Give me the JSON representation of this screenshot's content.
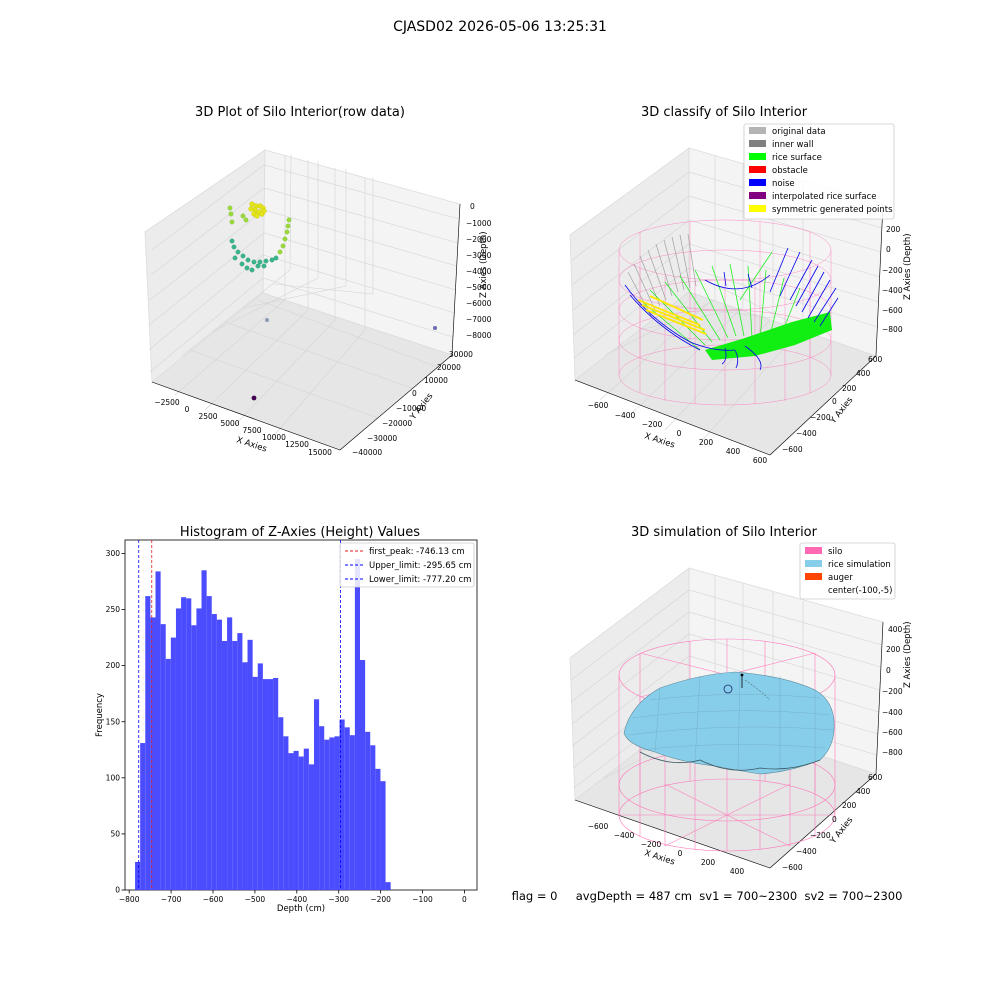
{
  "suptitle": "CJASD02 2026-05-06 13:25:31",
  "colors": {
    "hist_bar": "#4c4cff",
    "first_peak": "#e41a1c",
    "limit": "#0000ff",
    "pane": "#f2f2f2",
    "grid": "#dcdcdc"
  },
  "panel_raw": {
    "title": "3D Plot of Silo Interior(row data)",
    "xlabel": "X Axies",
    "ylabel": "Y Axies",
    "zlabel": "Z Axies (Depth)",
    "xticks": [
      "−2500",
      "0",
      "2500",
      "5000",
      "7500",
      "10000",
      "12500",
      "15000"
    ],
    "yticks": [
      "−40000",
      "−30000",
      "−20000",
      "−10000",
      "0",
      "10000",
      "20000",
      "30000"
    ],
    "zticks": [
      "0",
      "−1000",
      "−2000",
      "−3000",
      "−4000",
      "−5000",
      "−6000",
      "−7000",
      "−8000"
    ]
  },
  "panel_classify": {
    "title": "3D classify of Silo Interior",
    "xlabel": "X Axies",
    "ylabel": "Y Axies",
    "zlabel": "Z Axies (Depth)",
    "xticks": [
      "−600",
      "−400",
      "−200",
      "0",
      "200",
      "400",
      "600"
    ],
    "yticks": [
      "−600",
      "−400",
      "−200",
      "0",
      "200",
      "400",
      "600"
    ],
    "zticks": [
      "200",
      "0",
      "−200",
      "−400",
      "−600",
      "−800"
    ],
    "legend": [
      {
        "label": "original data",
        "color": "#b4b4b4"
      },
      {
        "label": "inner wall",
        "color": "#808080"
      },
      {
        "label": "rice surface",
        "color": "#00ff00"
      },
      {
        "label": "obstacle",
        "color": "#ff0000"
      },
      {
        "label": "noise",
        "color": "#0000ff"
      },
      {
        "label": "interpolated rice surface",
        "color": "#800080"
      },
      {
        "label": "symmetric generated points",
        "color": "#ffff00"
      }
    ]
  },
  "panel_sim": {
    "title": "3D simulation of Silo Interior",
    "xlabel": "X Axies",
    "ylabel": "Y Axies",
    "zlabel": "Z Axies (Depth)",
    "xticks": [
      "−600",
      "−400",
      "−200",
      "0",
      "200",
      "400"
    ],
    "yticks": [
      "−600",
      "−400",
      "−200",
      "0",
      "200",
      "400",
      "600"
    ],
    "zticks": [
      "400",
      "200",
      "0",
      "−200",
      "−400",
      "−600",
      "−800"
    ],
    "legend": [
      {
        "label": "silo",
        "color": "#ff69b4"
      },
      {
        "label": "rice simulation",
        "color": "#87ceeb"
      },
      {
        "label": "auger",
        "color": "#ff4500"
      },
      {
        "label": "center(-100,-5)",
        "color": ""
      }
    ],
    "status_text": "flag = 0     avgDepth = 487 cm  sv1 = 700~2300  sv2 = 700~2300"
  },
  "chart_data": {
    "type": "bar",
    "title": "Histogram of Z-Axies (Height) Values",
    "xlabel": "Depth (cm)",
    "ylabel": "Frequency",
    "xlim": [
      -810,
      30
    ],
    "ylim": [
      0,
      312
    ],
    "xticks": [
      -800,
      -700,
      -600,
      -500,
      -400,
      -300,
      -200,
      -100,
      0
    ],
    "yticks": [
      0,
      50,
      100,
      150,
      200,
      250,
      300
    ],
    "bin_start": -786,
    "bin_width": 12.2,
    "values": [
      25,
      131,
      262,
      243,
      284,
      237,
      206,
      225,
      251,
      261,
      260,
      236,
      251,
      285,
      262,
      246,
      241,
      222,
      243,
      222,
      229,
      203,
      223,
      190,
      202,
      188,
      188,
      189,
      154,
      137,
      122,
      124,
      119,
      126,
      112,
      170,
      146,
      134,
      136,
      137,
      152,
      145,
      138,
      295,
      205,
      141,
      129,
      108,
      97,
      7
    ],
    "vlines": [
      {
        "name": "first_peak",
        "label": "first_peak: -746.13 cm",
        "x": -746.13,
        "color": "#e41a1c"
      },
      {
        "name": "upper_limit",
        "label": "Upper_limit: -295.65 cm",
        "x": -295.65,
        "color": "#0000ff"
      },
      {
        "name": "lower_limit",
        "label": "Lower_limit: -777.20 cm",
        "x": -777.2,
        "color": "#0000ff"
      }
    ],
    "legend_position": "top-right"
  }
}
